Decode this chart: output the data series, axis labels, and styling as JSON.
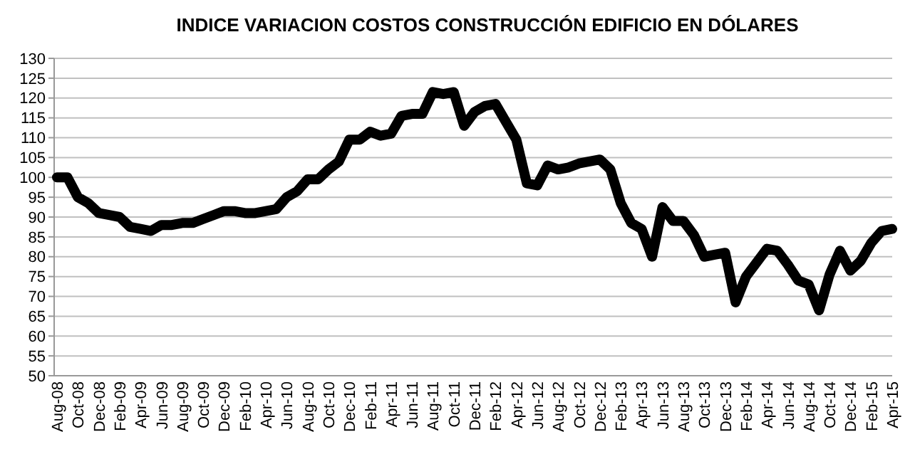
{
  "chart_data": {
    "type": "line",
    "title": "INDICE VARIACION  COSTOS CONSTRUCCIÓN EDIFICIO EN DÓLARES",
    "categories": [
      "Aug-08",
      null,
      "Oct-08",
      null,
      "Dec-08",
      null,
      "Feb-09",
      null,
      "Apr-09",
      null,
      "Jun-09",
      null,
      "Aug-09",
      null,
      "Oct-09",
      null,
      "Dec-09",
      null,
      "Feb-10",
      null,
      "Apr-10",
      null,
      "Jun-10",
      null,
      "Aug-10",
      null,
      "Oct-10",
      null,
      "Dec-10",
      null,
      "Feb-11",
      null,
      "Apr-11",
      null,
      "Jun-11",
      null,
      "Aug-11",
      null,
      "Oct-11",
      null,
      "Dec-11",
      null,
      "Feb-12",
      null,
      "Apr-12",
      null,
      "Jun-12",
      null,
      "Aug-12",
      null,
      "Oct-12",
      null,
      "Dec-12",
      null,
      "Feb-13",
      null,
      "Apr-13",
      null,
      "Jun-13",
      null,
      "Aug-13",
      null,
      "Oct-13",
      null,
      "Dec-13",
      null,
      "Feb-14",
      null,
      "Apr-14",
      null,
      "Jun-14",
      null,
      "Aug-14",
      null,
      "Oct-14",
      null,
      "Dec-14",
      null,
      "Feb-15",
      null,
      "Apr-15"
    ],
    "series": [
      {
        "color": "#000000",
        "values": [
          100,
          100,
          95,
          93.5,
          91,
          90.5,
          90,
          87.5,
          87,
          86.5,
          88,
          88,
          88.5,
          88.5,
          89.5,
          90.5,
          91.5,
          91.5,
          91,
          91,
          91.5,
          92,
          95,
          96.5,
          99.5,
          99.5,
          102,
          104,
          109.5,
          109.5,
          111.5,
          110.5,
          111,
          115.5,
          116,
          116,
          121.5,
          121,
          121.5,
          113,
          116.5,
          118,
          118.5,
          114,
          109.5,
          98.5,
          98,
          103,
          102,
          102.5,
          103.5,
          104,
          104.5,
          102,
          93.5,
          88.5,
          87,
          80,
          92.5,
          89,
          89,
          85.5,
          80,
          80.5,
          81,
          68.5,
          75,
          78.5,
          82,
          81.5,
          78,
          74,
          73,
          66.5,
          75.5,
          81.5,
          76.5,
          79,
          83.5,
          86.5,
          87
        ]
      }
    ],
    "ylim": [
      50,
      130
    ],
    "yticks": [
      50,
      55,
      60,
      65,
      70,
      75,
      80,
      85,
      90,
      95,
      100,
      105,
      110,
      115,
      120,
      125,
      130
    ],
    "grid": "y",
    "marker": "none",
    "line_style": "solid"
  }
}
